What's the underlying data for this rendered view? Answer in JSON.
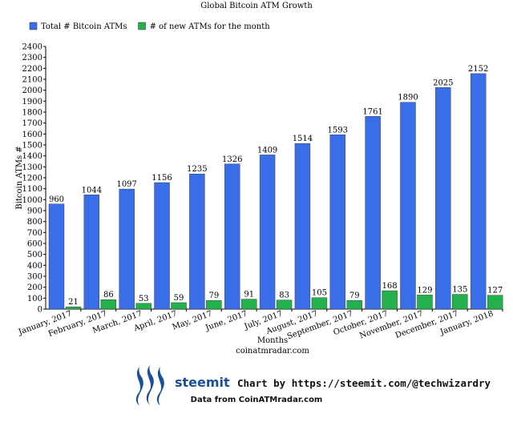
{
  "chart_data": {
    "type": "bar",
    "title": "Global Bitcoin ATM Growth",
    "xlabel": "Months",
    "ylabel": "Bitcoin ATMs #",
    "subcaption": "coinatmradar.com",
    "categories": [
      "January, 2017",
      "February, 2017",
      "March, 2017",
      "April, 2017",
      "May, 2017",
      "June, 2017",
      "July, 2017",
      "August, 2017",
      "September, 2017",
      "October, 2017",
      "November, 2017",
      "December, 2017",
      "January, 2018"
    ],
    "series": [
      {
        "name": "Total # Bitcoin ATMs",
        "color": "#3a6ee8",
        "values": [
          960,
          1044,
          1097,
          1156,
          1235,
          1326,
          1409,
          1514,
          1593,
          1761,
          1890,
          2025,
          2152
        ]
      },
      {
        "name": "# of new ATMs for the month",
        "color": "#22b14c",
        "values": [
          21,
          86,
          53,
          59,
          79,
          91,
          83,
          105,
          79,
          168,
          129,
          135,
          127
        ]
      }
    ],
    "ylim": [
      0,
      2400
    ],
    "ytick_step": 100,
    "grid": false,
    "legend_position": "top-left"
  },
  "footer": {
    "brand": "steemit",
    "credit": "Chart by https://steemit.com/@techwizardry",
    "source": "Data from CoinATMradar.com",
    "logo_icon": "steem-logo-icon",
    "logo_color": "#1a5099"
  }
}
